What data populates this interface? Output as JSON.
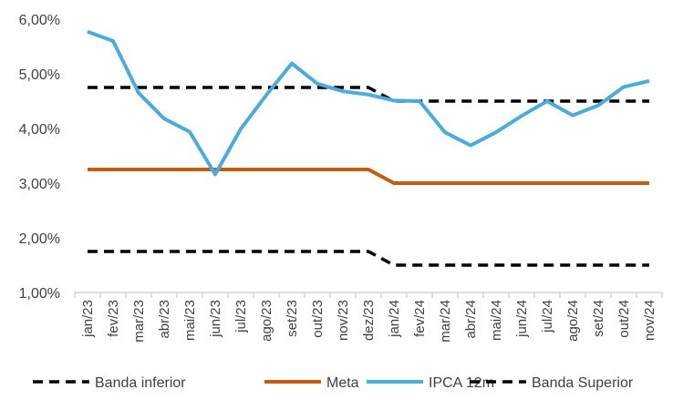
{
  "chart_data": {
    "type": "line",
    "categories": [
      "jan/23",
      "fev/23",
      "mar/23",
      "abr/23",
      "mai/23",
      "jun/23",
      "jul/23",
      "ago/23",
      "set/23",
      "out/23",
      "nov/23",
      "dez/23",
      "jan/24",
      "fev/24",
      "mar/24",
      "abr/24",
      "mai/24",
      "jun/24",
      "jul/24",
      "ago/24",
      "set/24",
      "out/24",
      "nov/24"
    ],
    "series": [
      {
        "name": "Banda inferior",
        "color": "#000000",
        "dashed": true,
        "values": [
          1.75,
          1.75,
          1.75,
          1.75,
          1.75,
          1.75,
          1.75,
          1.75,
          1.75,
          1.75,
          1.75,
          1.75,
          1.5,
          1.5,
          1.5,
          1.5,
          1.5,
          1.5,
          1.5,
          1.5,
          1.5,
          1.5,
          1.5
        ]
      },
      {
        "name": "Meta",
        "color": "#C55A11",
        "dashed": false,
        "values": [
          3.25,
          3.25,
          3.25,
          3.25,
          3.25,
          3.25,
          3.25,
          3.25,
          3.25,
          3.25,
          3.25,
          3.25,
          3.0,
          3.0,
          3.0,
          3.0,
          3.0,
          3.0,
          3.0,
          3.0,
          3.0,
          3.0,
          3.0
        ]
      },
      {
        "name": "IPCA 12m",
        "color": "#4BACDC",
        "dashed": false,
        "values": [
          5.77,
          5.6,
          4.65,
          4.18,
          3.94,
          3.16,
          3.99,
          4.61,
          5.19,
          4.82,
          4.68,
          4.62,
          4.51,
          4.5,
          3.93,
          3.69,
          3.93,
          4.23,
          4.5,
          4.24,
          4.42,
          4.76,
          4.87
        ]
      },
      {
        "name": "Banda Superior",
        "color": "#000000",
        "dashed": true,
        "values": [
          4.75,
          4.75,
          4.75,
          4.75,
          4.75,
          4.75,
          4.75,
          4.75,
          4.75,
          4.75,
          4.75,
          4.75,
          4.5,
          4.5,
          4.5,
          4.5,
          4.5,
          4.5,
          4.5,
          4.5,
          4.5,
          4.5,
          4.5
        ]
      }
    ],
    "ylim": [
      1.0,
      6.0
    ],
    "yticks": [
      1.0,
      2.0,
      3.0,
      4.0,
      5.0,
      6.0
    ],
    "ytick_labels": [
      "1,00%",
      "2,00%",
      "3,00%",
      "4,00%",
      "5,00%",
      "6,00%"
    ],
    "grid": false,
    "legend_position": "bottom",
    "title": "",
    "xlabel": "",
    "ylabel": ""
  }
}
